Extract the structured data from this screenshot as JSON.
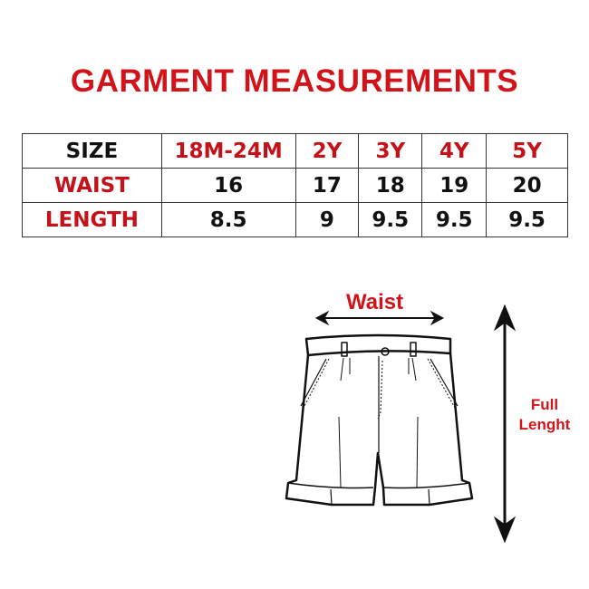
{
  "title": "GARMENT MEASUREMENTS",
  "table": {
    "header": [
      "SIZE",
      "18M-24M",
      "2Y",
      "3Y",
      "4Y",
      "5Y"
    ],
    "rows": [
      [
        "WAIST",
        "16",
        "17",
        "18",
        "19",
        "20"
      ],
      [
        "LENGTH",
        "8.5",
        "9",
        "9.5",
        "9.5",
        "9.5"
      ]
    ]
  },
  "diagram": {
    "waist_label": "Waist",
    "length_label_line1": "Full",
    "length_label_line2": "Lenght"
  },
  "colors": {
    "accent": "#d3131a",
    "text": "#111111"
  }
}
